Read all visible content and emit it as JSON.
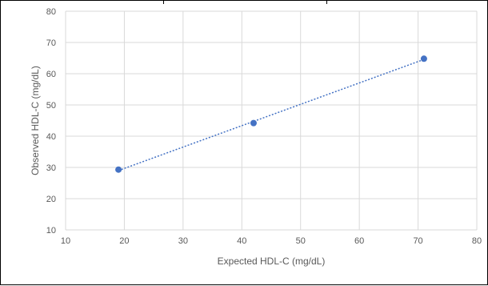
{
  "chart_data": {
    "type": "scatter",
    "title": "",
    "xlabel": "Expected HDL-C (mg/dL)",
    "ylabel": "Observed HDL-C (mg/dL)",
    "xlim": [
      10,
      80
    ],
    "ylim": [
      10,
      80
    ],
    "xticks": [
      "10",
      "20",
      "30",
      "40",
      "50",
      "60",
      "70",
      "80"
    ],
    "yticks": [
      "10",
      "20",
      "30",
      "40",
      "50",
      "60",
      "70",
      "80"
    ],
    "grid": true,
    "trendline": "linear",
    "series": [
      {
        "x": [
          19,
          42,
          71
        ],
        "y": [
          29.3,
          44.2,
          64.8
        ]
      }
    ],
    "colors": {
      "marker": "#4472c4",
      "trendline": "#4472c4",
      "grid": "#d9d9d9"
    }
  }
}
